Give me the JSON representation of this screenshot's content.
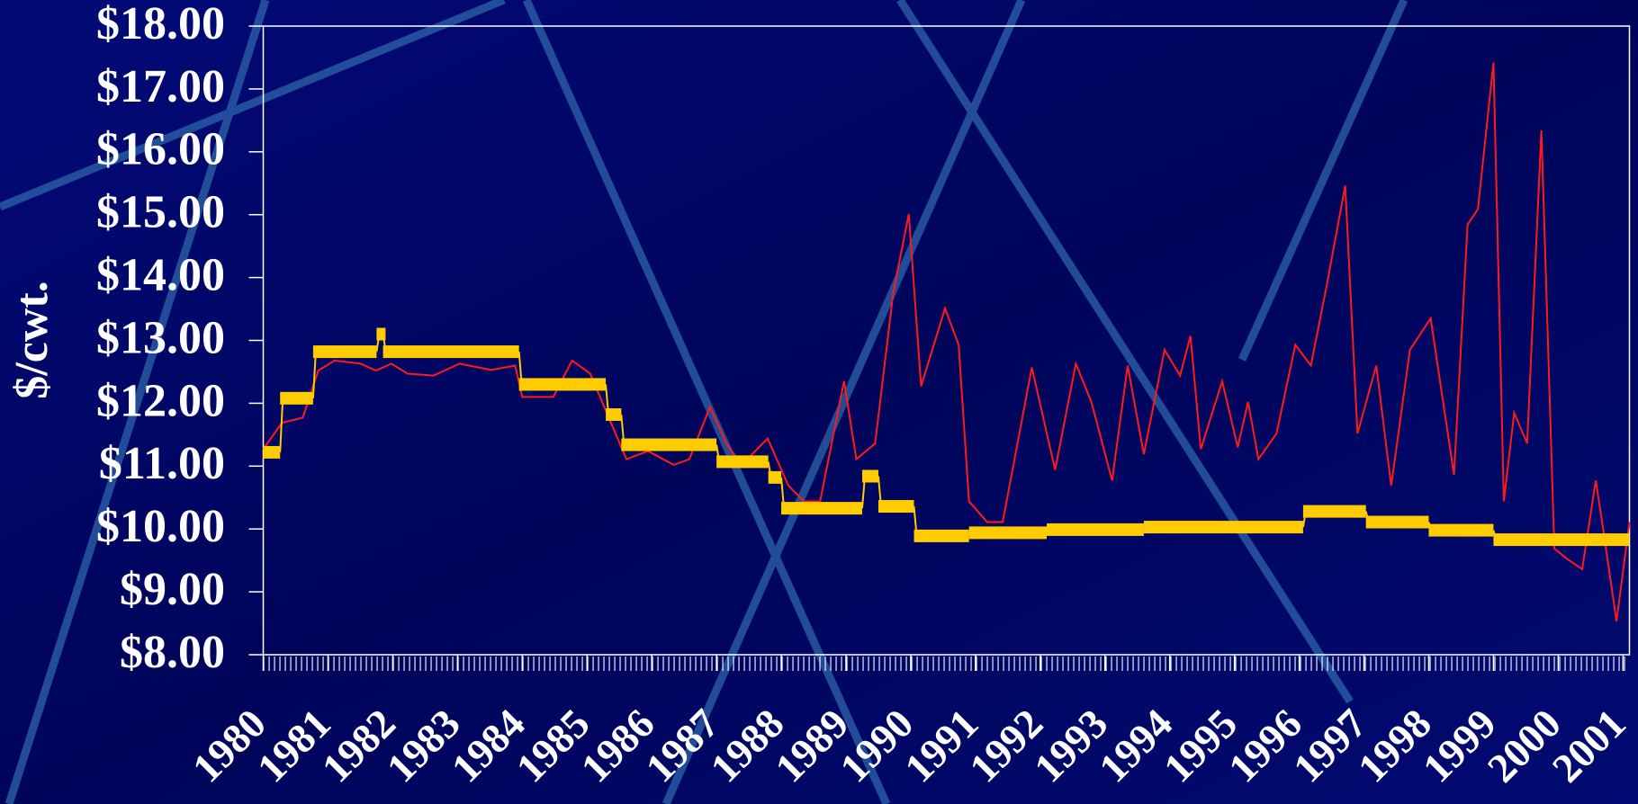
{
  "chart_data": {
    "type": "line",
    "y_label": "$/cwt.",
    "xlim": [
      1980,
      2001.1
    ],
    "xticks": [
      1980,
      1981,
      1982,
      1983,
      1984,
      1985,
      1986,
      1987,
      1988,
      1989,
      1990,
      1991,
      1992,
      1993,
      1994,
      1995,
      1996,
      1997,
      1998,
      1999,
      2000,
      2001
    ],
    "ylim": [
      8,
      18
    ],
    "yticks": [
      {
        "value": 8,
        "label": "$8.00"
      },
      {
        "value": 9,
        "label": "$9.00"
      },
      {
        "value": 10,
        "label": "$10.00"
      },
      {
        "value": 11,
        "label": "$11.00"
      },
      {
        "value": 12,
        "label": "$12.00"
      },
      {
        "value": 13,
        "label": "$13.00"
      },
      {
        "value": 14,
        "label": "$14.00"
      },
      {
        "value": 15,
        "label": "$15.00"
      },
      {
        "value": 16,
        "label": "$16.00"
      },
      {
        "value": 17,
        "label": "$17.00"
      },
      {
        "value": 18,
        "label": "$18.00"
      }
    ],
    "series": [
      {
        "color": "#ff1a1a",
        "style": "line",
        "x": [
          1980.0,
          1980.29,
          1980.61,
          1980.85,
          1981.1,
          1981.5,
          1981.74,
          1981.98,
          1982.23,
          1982.63,
          1983.03,
          1983.52,
          1983.89,
          1984.0,
          1984.48,
          1984.77,
          1985.05,
          1985.37,
          1985.61,
          1985.94,
          1986.34,
          1986.58,
          1986.9,
          1987.15,
          1987.39,
          1987.79,
          1988.11,
          1988.35,
          1988.6,
          1988.97,
          1989.16,
          1989.45,
          1989.73,
          1989.97,
          1990.16,
          1990.53,
          1990.74,
          1990.9,
          1991.18,
          1991.42,
          1991.87,
          1992.23,
          1992.55,
          1992.79,
          1993.11,
          1993.35,
          1993.6,
          1993.92,
          1994.16,
          1994.32,
          1994.48,
          1994.81,
          1995.05,
          1995.21,
          1995.37,
          1995.65,
          1995.94,
          1996.18,
          1996.42,
          1996.71,
          1996.9,
          1997.19,
          1997.42,
          1997.71,
          1998.03,
          1998.39,
          1998.6,
          1998.76,
          1999.0,
          1999.16,
          1999.32,
          1999.52,
          1999.74,
          1999.94,
          2000.13,
          2000.37,
          2000.58,
          2000.69,
          2000.9,
          2001.1
        ],
        "values": [
          11.27,
          11.69,
          11.77,
          12.52,
          12.68,
          12.63,
          12.52,
          12.63,
          12.47,
          12.44,
          12.63,
          12.53,
          12.6,
          12.1,
          12.1,
          12.68,
          12.47,
          11.69,
          11.11,
          11.24,
          11.02,
          11.11,
          11.94,
          11.36,
          11.02,
          11.44,
          10.69,
          10.44,
          10.44,
          12.35,
          11.11,
          11.36,
          13.76,
          15.01,
          12.27,
          13.51,
          12.93,
          10.44,
          10.11,
          10.11,
          12.57,
          10.94,
          12.63,
          12.02,
          10.77,
          12.6,
          11.19,
          12.85,
          12.44,
          13.07,
          11.27,
          12.35,
          11.3,
          12.02,
          11.11,
          11.52,
          12.93,
          12.6,
          13.85,
          15.46,
          11.52,
          12.6,
          10.69,
          12.85,
          13.35,
          10.86,
          14.84,
          15.09,
          17.42,
          10.44,
          11.85,
          11.36,
          16.34,
          9.69,
          9.53,
          9.36,
          10.77,
          10.03,
          8.53,
          10.11
        ]
      },
      {
        "color": "#ffcc00",
        "style": "step",
        "x": [
          1980.0,
          1980.26,
          1980.77,
          1981.75,
          1981.85,
          1983.95,
          1985.29,
          1985.53,
          1987.0,
          1987.8,
          1988.0,
          1989.25,
          1989.5,
          1990.05,
          1990.9,
          1992.1,
          1993.6,
          1996.06,
          1997.03,
          1998.0,
          1999.0
        ],
        "values": [
          11.22,
          12.08,
          12.82,
          13.1,
          12.82,
          12.3,
          11.82,
          11.34,
          11.07,
          10.82,
          10.33,
          10.84,
          10.36,
          9.89,
          9.94,
          9.99,
          10.03,
          10.28,
          10.11,
          9.98,
          9.83
        ]
      }
    ]
  }
}
